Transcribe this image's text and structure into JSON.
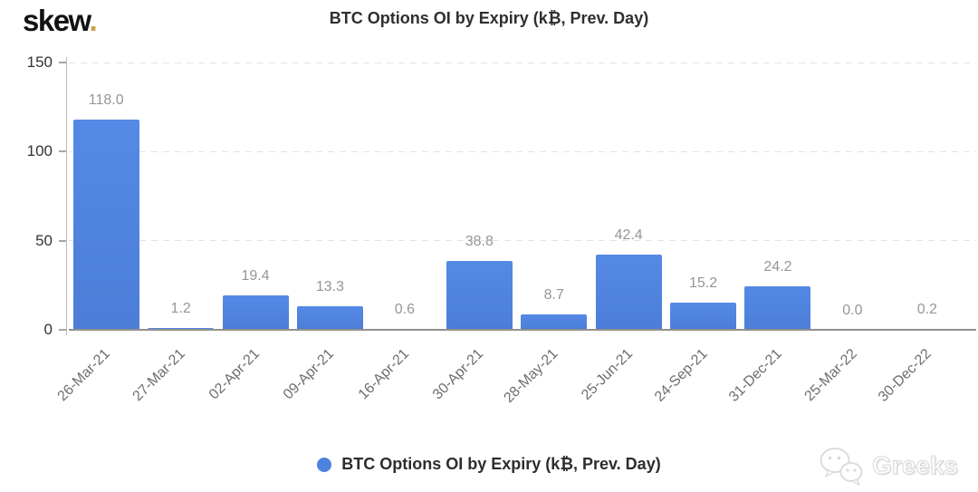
{
  "logo": {
    "text": "skew",
    "dot": "."
  },
  "header": {
    "title": "BTC Options OI by Expiry (k₿, Prev. Day)"
  },
  "legend": {
    "label": "BTC Options OI by Expiry (k₿, Prev. Day)",
    "marker_color": "#4e82e0"
  },
  "watermark": {
    "text": "Greeks",
    "icon": "wechat-icon"
  },
  "colors": {
    "bar": "#4e82e0",
    "grid": "#e3e3e3",
    "axis_text": "#333333",
    "value_label": "#969696",
    "x_label": "#6e6e6e",
    "logo_dot": "#cfa14b",
    "baseline": "#93908b"
  },
  "chart_data": {
    "type": "bar",
    "title": "BTC Options OI by Expiry (k₿, Prev. Day)",
    "categories": [
      "26-Mar-21",
      "27-Mar-21",
      "02-Apr-21",
      "09-Apr-21",
      "16-Apr-21",
      "30-Apr-21",
      "28-May-21",
      "25-Jun-21",
      "24-Sep-21",
      "31-Dec-21",
      "25-Mar-22",
      "30-Dec-22"
    ],
    "values": [
      118.0,
      1.2,
      19.4,
      13.3,
      0.6,
      38.8,
      8.7,
      42.4,
      15.2,
      24.2,
      0.0,
      0.2
    ],
    "value_label_decimals": 1,
    "xlabel": "",
    "ylabel": "",
    "ylim": [
      0,
      150
    ],
    "y_ticks": [
      0,
      50,
      100,
      150
    ],
    "grid": "horizontal-dashed",
    "bar_color": "#4e82e0",
    "legend_position": "bottom-center",
    "legend_entries": [
      "BTC Options OI by Expiry (k₿, Prev. Day)"
    ]
  }
}
